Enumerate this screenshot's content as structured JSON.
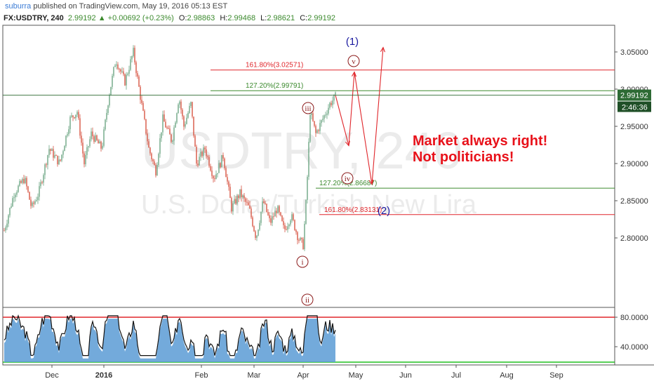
{
  "header": {
    "author": "suburra",
    "published_text": "published on TradingView.com, May 19, 2016 05:13 EST",
    "symbol_line": "FX:USDTRY, 240",
    "last": "2.99192",
    "change": "+0.00692 (+0.23%)",
    "open_label": "O:",
    "open": "2.98863",
    "high_label": "H:",
    "high": "2.99468",
    "low_label": "L:",
    "low": "2.98621",
    "close_label": "C:",
    "close": "2.99192"
  },
  "watermark": {
    "symbol": "USDTRY, 240",
    "description": "U.S. Dollar/Turkish New Lira"
  },
  "price_axis": {
    "ticks": [
      "3.05000",
      "3.00000",
      "2.95000",
      "2.90000",
      "2.85000",
      "2.80000"
    ],
    "tick_values": [
      3.05,
      3.0,
      2.95,
      2.9,
      2.85,
      2.8
    ],
    "last_price": "2.99192",
    "countdown": "2:46:36"
  },
  "indicator_axis": {
    "ticks": [
      "80.0000",
      "40.0000"
    ],
    "tick_values": [
      80,
      40
    ]
  },
  "time_axis": {
    "ticks": [
      "Dec",
      "2016",
      "Feb",
      "Mar",
      "Apr",
      "May",
      "Jun",
      "Jul",
      "Aug",
      "Sep"
    ]
  },
  "fib_levels": [
    {
      "label": "161.80%(3.02571)",
      "price": 3.02571,
      "color": "#e0262b"
    },
    {
      "label": "127.20%(2.99791)",
      "price": 2.99791,
      "color": "#3c8a2e"
    },
    {
      "label": "127.20%(2.86687)",
      "price": 2.86687,
      "color": "#3c8a2e"
    },
    {
      "label": "161.80%(2.83131)",
      "price": 2.83131,
      "color": "#e0262b"
    }
  ],
  "wave_labels": {
    "i": "i",
    "ii": "ii",
    "iii": "iii",
    "iv": "iv",
    "v": "v",
    "one": "(1)",
    "two": "(2)"
  },
  "annotation": {
    "line1": "Market always right!",
    "line2": "Not politicians!"
  },
  "colors": {
    "bull": "#6ba583",
    "bear": "#d75442",
    "fib_red": "#e0262b",
    "fib_green": "#3c8a2e",
    "wave": "#8b1a1a",
    "wave_major": "#1a1aa0",
    "annotation": "#e8111a",
    "rsi_fill": "#5b9bd5",
    "rsi_upper": "#e0262b",
    "rsi_lower": "#22c022",
    "price_tag": "#2e6b35"
  }
}
